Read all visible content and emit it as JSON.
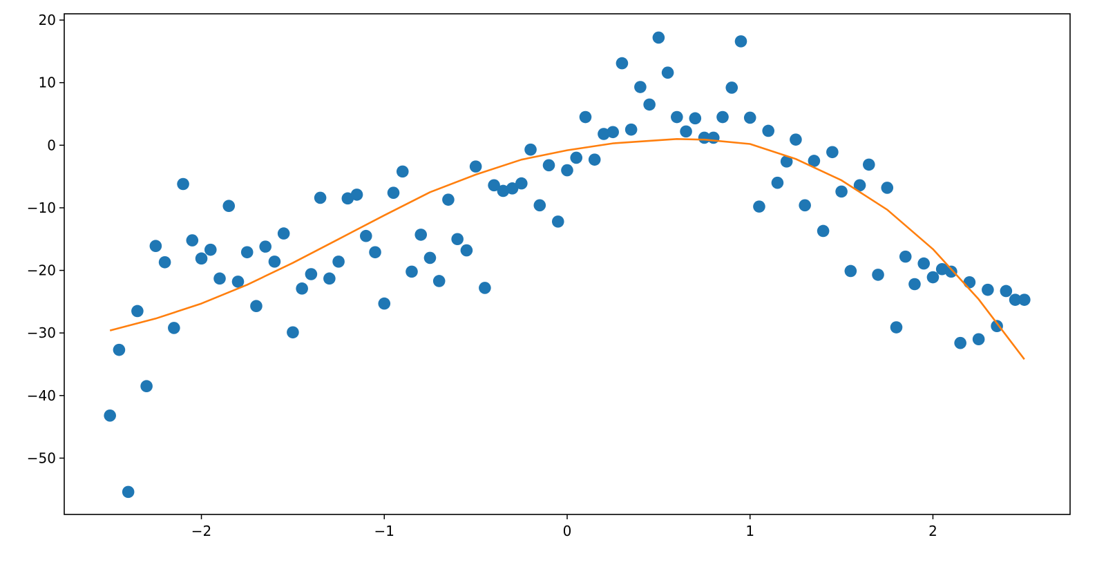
{
  "chart_data": {
    "type": "scatter",
    "title": "",
    "xlabel": "",
    "ylabel": "",
    "xlim": [
      -2.75,
      2.75
    ],
    "ylim": [
      -59,
      21
    ],
    "grid": false,
    "x_ticks": [
      -2,
      -1,
      0,
      1,
      2
    ],
    "x_tick_labels": [
      "−2",
      "−1",
      "0",
      "1",
      "2"
    ],
    "y_ticks": [
      -50,
      -40,
      -30,
      -20,
      -10,
      0,
      10,
      20
    ],
    "y_tick_labels": [
      "−50",
      "−40",
      "−30",
      "−20",
      "−10",
      "0",
      "10",
      "20"
    ],
    "colors": {
      "points": "#1f77b4",
      "fit": "#ff7f0e"
    },
    "series": [
      {
        "kind": "scatter",
        "x": [
          -2.5,
          -2.45,
          -2.4,
          -2.35,
          -2.3,
          -2.25,
          -2.2,
          -2.15,
          -2.1,
          -2.05,
          -2.0,
          -1.95,
          -1.9,
          -1.85,
          -1.8,
          -1.75,
          -1.7,
          -1.65,
          -1.6,
          -1.55,
          -1.5,
          -1.45,
          -1.4,
          -1.35,
          -1.3,
          -1.25,
          -1.2,
          -1.15,
          -1.1,
          -1.05,
          -1.0,
          -0.95,
          -0.9,
          -0.85,
          -0.8,
          -0.75,
          -0.7,
          -0.65,
          -0.6,
          -0.55,
          -0.5,
          -0.45,
          -0.4,
          -0.35,
          -0.3,
          -0.25,
          -0.2,
          -0.15,
          -0.1,
          -0.05,
          0.0,
          0.05,
          0.1,
          0.15,
          0.2,
          0.25,
          0.3,
          0.35,
          0.4,
          0.45,
          0.5,
          0.55,
          0.6,
          0.65,
          0.7,
          0.75,
          0.8,
          0.85,
          0.9,
          0.95,
          1.0,
          1.05,
          1.1,
          1.15,
          1.2,
          1.25,
          1.3,
          1.35,
          1.4,
          1.45,
          1.5,
          1.55,
          1.6,
          1.65,
          1.7,
          1.75,
          1.8,
          1.85,
          1.9,
          1.95,
          2.0,
          2.05,
          2.1,
          2.15,
          2.2,
          2.25,
          2.3,
          2.35,
          2.4,
          2.45,
          2.5
        ],
        "y": [
          -43.2,
          -32.7,
          -55.4,
          -26.5,
          -38.5,
          -16.1,
          -18.7,
          -29.2,
          -6.2,
          -15.2,
          -18.1,
          -16.7,
          -21.3,
          -9.7,
          -21.8,
          -17.1,
          -25.7,
          -16.2,
          -18.6,
          -14.1,
          -29.9,
          -22.9,
          -20.6,
          -8.4,
          -21.3,
          -18.6,
          -8.5,
          -7.9,
          -14.5,
          -17.1,
          -25.3,
          -7.6,
          -4.2,
          -20.2,
          -14.3,
          -18.0,
          -21.7,
          -8.7,
          -15.0,
          -16.8,
          -3.4,
          -22.8,
          -6.4,
          -7.3,
          -6.9,
          -6.1,
          -0.7,
          -9.6,
          -3.2,
          -12.2,
          -4.0,
          -2.0,
          4.5,
          -2.3,
          1.8,
          2.1,
          13.1,
          2.5,
          9.3,
          6.5,
          17.2,
          11.6,
          4.5,
          2.2,
          4.3,
          1.2,
          1.2,
          4.5,
          9.2,
          16.6,
          4.4,
          -9.8,
          2.3,
          -6.0,
          -2.6,
          0.9,
          -9.6,
          -2.5,
          -13.7,
          -1.1,
          -7.4,
          -20.1,
          -6.4,
          -3.1,
          -20.7,
          -6.8,
          -29.1,
          -17.8,
          -22.2,
          -18.9,
          -21.1,
          -19.8,
          -20.2,
          -31.6,
          -21.9,
          -31.0,
          -23.1,
          -28.9,
          -23.3,
          -24.7,
          -24.7
        ]
      },
      {
        "kind": "line",
        "x": [
          -2.5,
          -2.25,
          -2.0,
          -1.75,
          -1.5,
          -1.25,
          -1.0,
          -0.75,
          -0.5,
          -0.25,
          0.0,
          0.25,
          0.5,
          0.6,
          0.75,
          1.0,
          1.25,
          1.5,
          1.75,
          2.0,
          2.25,
          2.5
        ],
        "y": [
          -29.6,
          -27.7,
          -25.3,
          -22.3,
          -18.8,
          -15.0,
          -11.2,
          -7.5,
          -4.7,
          -2.3,
          -0.8,
          0.3,
          0.8,
          1.0,
          0.9,
          0.2,
          -2.2,
          -5.6,
          -10.3,
          -16.6,
          -24.6,
          -34.2
        ]
      }
    ]
  }
}
